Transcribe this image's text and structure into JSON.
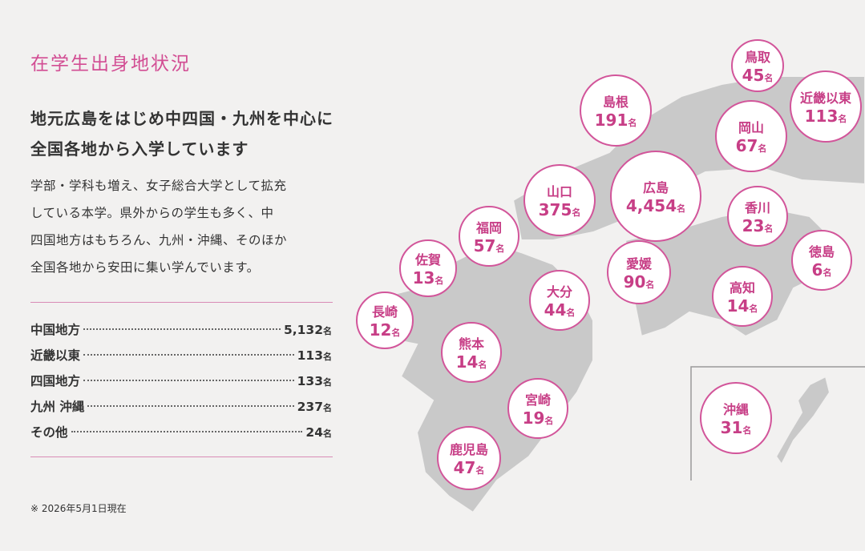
{
  "title": "在学生出身地状況",
  "headline": [
    "地元広島をはじめ中四国・九州を中心に",
    "全国各地から入学しています"
  ],
  "body": [
    "学部・学科も増え、女子総合大学として拡充",
    "している本学。県外からの学生も多く、中",
    "四国地方はもちろん、九州・沖縄、そのほか",
    "全国各地から安田に集い学んでいます。"
  ],
  "summary": [
    {
      "label": "中国地方",
      "count": "5,132",
      "unit": "名"
    },
    {
      "label": "近畿以東",
      "count": "113",
      "unit": "名"
    },
    {
      "label": "四国地方",
      "count": "133",
      "unit": "名"
    },
    {
      "label": "九州 沖縄",
      "count": "237",
      "unit": "名"
    },
    {
      "label": "その他",
      "count": "24",
      "unit": "名"
    }
  ],
  "note": "※ 2026年5月1日現在",
  "regions": [
    {
      "name": "鳥取",
      "count": "45",
      "unit": "名"
    },
    {
      "name": "近畿以東",
      "count": "113",
      "unit": "名"
    },
    {
      "name": "島根",
      "count": "191",
      "unit": "名"
    },
    {
      "name": "岡山",
      "count": "67",
      "unit": "名"
    },
    {
      "name": "広島",
      "count": "4,454",
      "unit": "名"
    },
    {
      "name": "山口",
      "count": "375",
      "unit": "名"
    },
    {
      "name": "香川",
      "count": "23",
      "unit": "名"
    },
    {
      "name": "福岡",
      "count": "57",
      "unit": "名"
    },
    {
      "name": "徳島",
      "count": "6",
      "unit": "名"
    },
    {
      "name": "佐賀",
      "count": "13",
      "unit": "名"
    },
    {
      "name": "愛媛",
      "count": "90",
      "unit": "名"
    },
    {
      "name": "高知",
      "count": "14",
      "unit": "名"
    },
    {
      "name": "大分",
      "count": "44",
      "unit": "名"
    },
    {
      "name": "長崎",
      "count": "12",
      "unit": "名"
    },
    {
      "name": "熊本",
      "count": "14",
      "unit": "名"
    },
    {
      "name": "宮崎",
      "count": "19",
      "unit": "名"
    },
    {
      "name": "鹿児島",
      "count": "47",
      "unit": "名"
    },
    {
      "name": "沖縄",
      "count": "31",
      "unit": "名"
    }
  ]
}
